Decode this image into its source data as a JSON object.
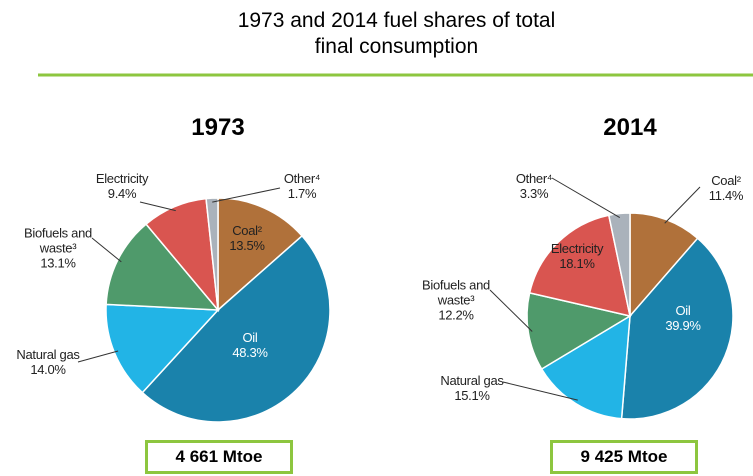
{
  "title": "1973 and 2014 fuel shares of total final consumption",
  "chart_data": [
    {
      "type": "pie",
      "title": "1973",
      "annotation": "4 661 Mtoe",
      "categories": [
        "Coal²",
        "Oil",
        "Natural gas",
        "Biofuels and waste³",
        "Electricity",
        "Other⁴"
      ],
      "values": [
        13.5,
        48.3,
        14.0,
        13.1,
        9.4,
        1.7
      ],
      "value_labels": [
        "13.5%",
        "48.3%",
        "14.0%",
        "13.1%",
        "9.4%",
        "1.7%"
      ],
      "colors": [
        "#b0713a",
        "#1a82ab",
        "#22b4e6",
        "#4f9a6b",
        "#d95550",
        "#aab2bb"
      ]
    },
    {
      "type": "pie",
      "title": "2014",
      "annotation": "9 425 Mtoe",
      "categories": [
        "Coal²",
        "Oil",
        "Natural gas",
        "Biofuels and waste³",
        "Electricity",
        "Other⁴"
      ],
      "values": [
        11.4,
        39.9,
        15.1,
        12.2,
        18.1,
        3.3
      ],
      "value_labels": [
        "11.4%",
        "39.9%",
        "15.1%",
        "12.2%",
        "18.1%",
        "3.3%"
      ],
      "colors": [
        "#b0713a",
        "#1a82ab",
        "#22b4e6",
        "#4f9a6b",
        "#d95550",
        "#aab2bb"
      ]
    }
  ]
}
